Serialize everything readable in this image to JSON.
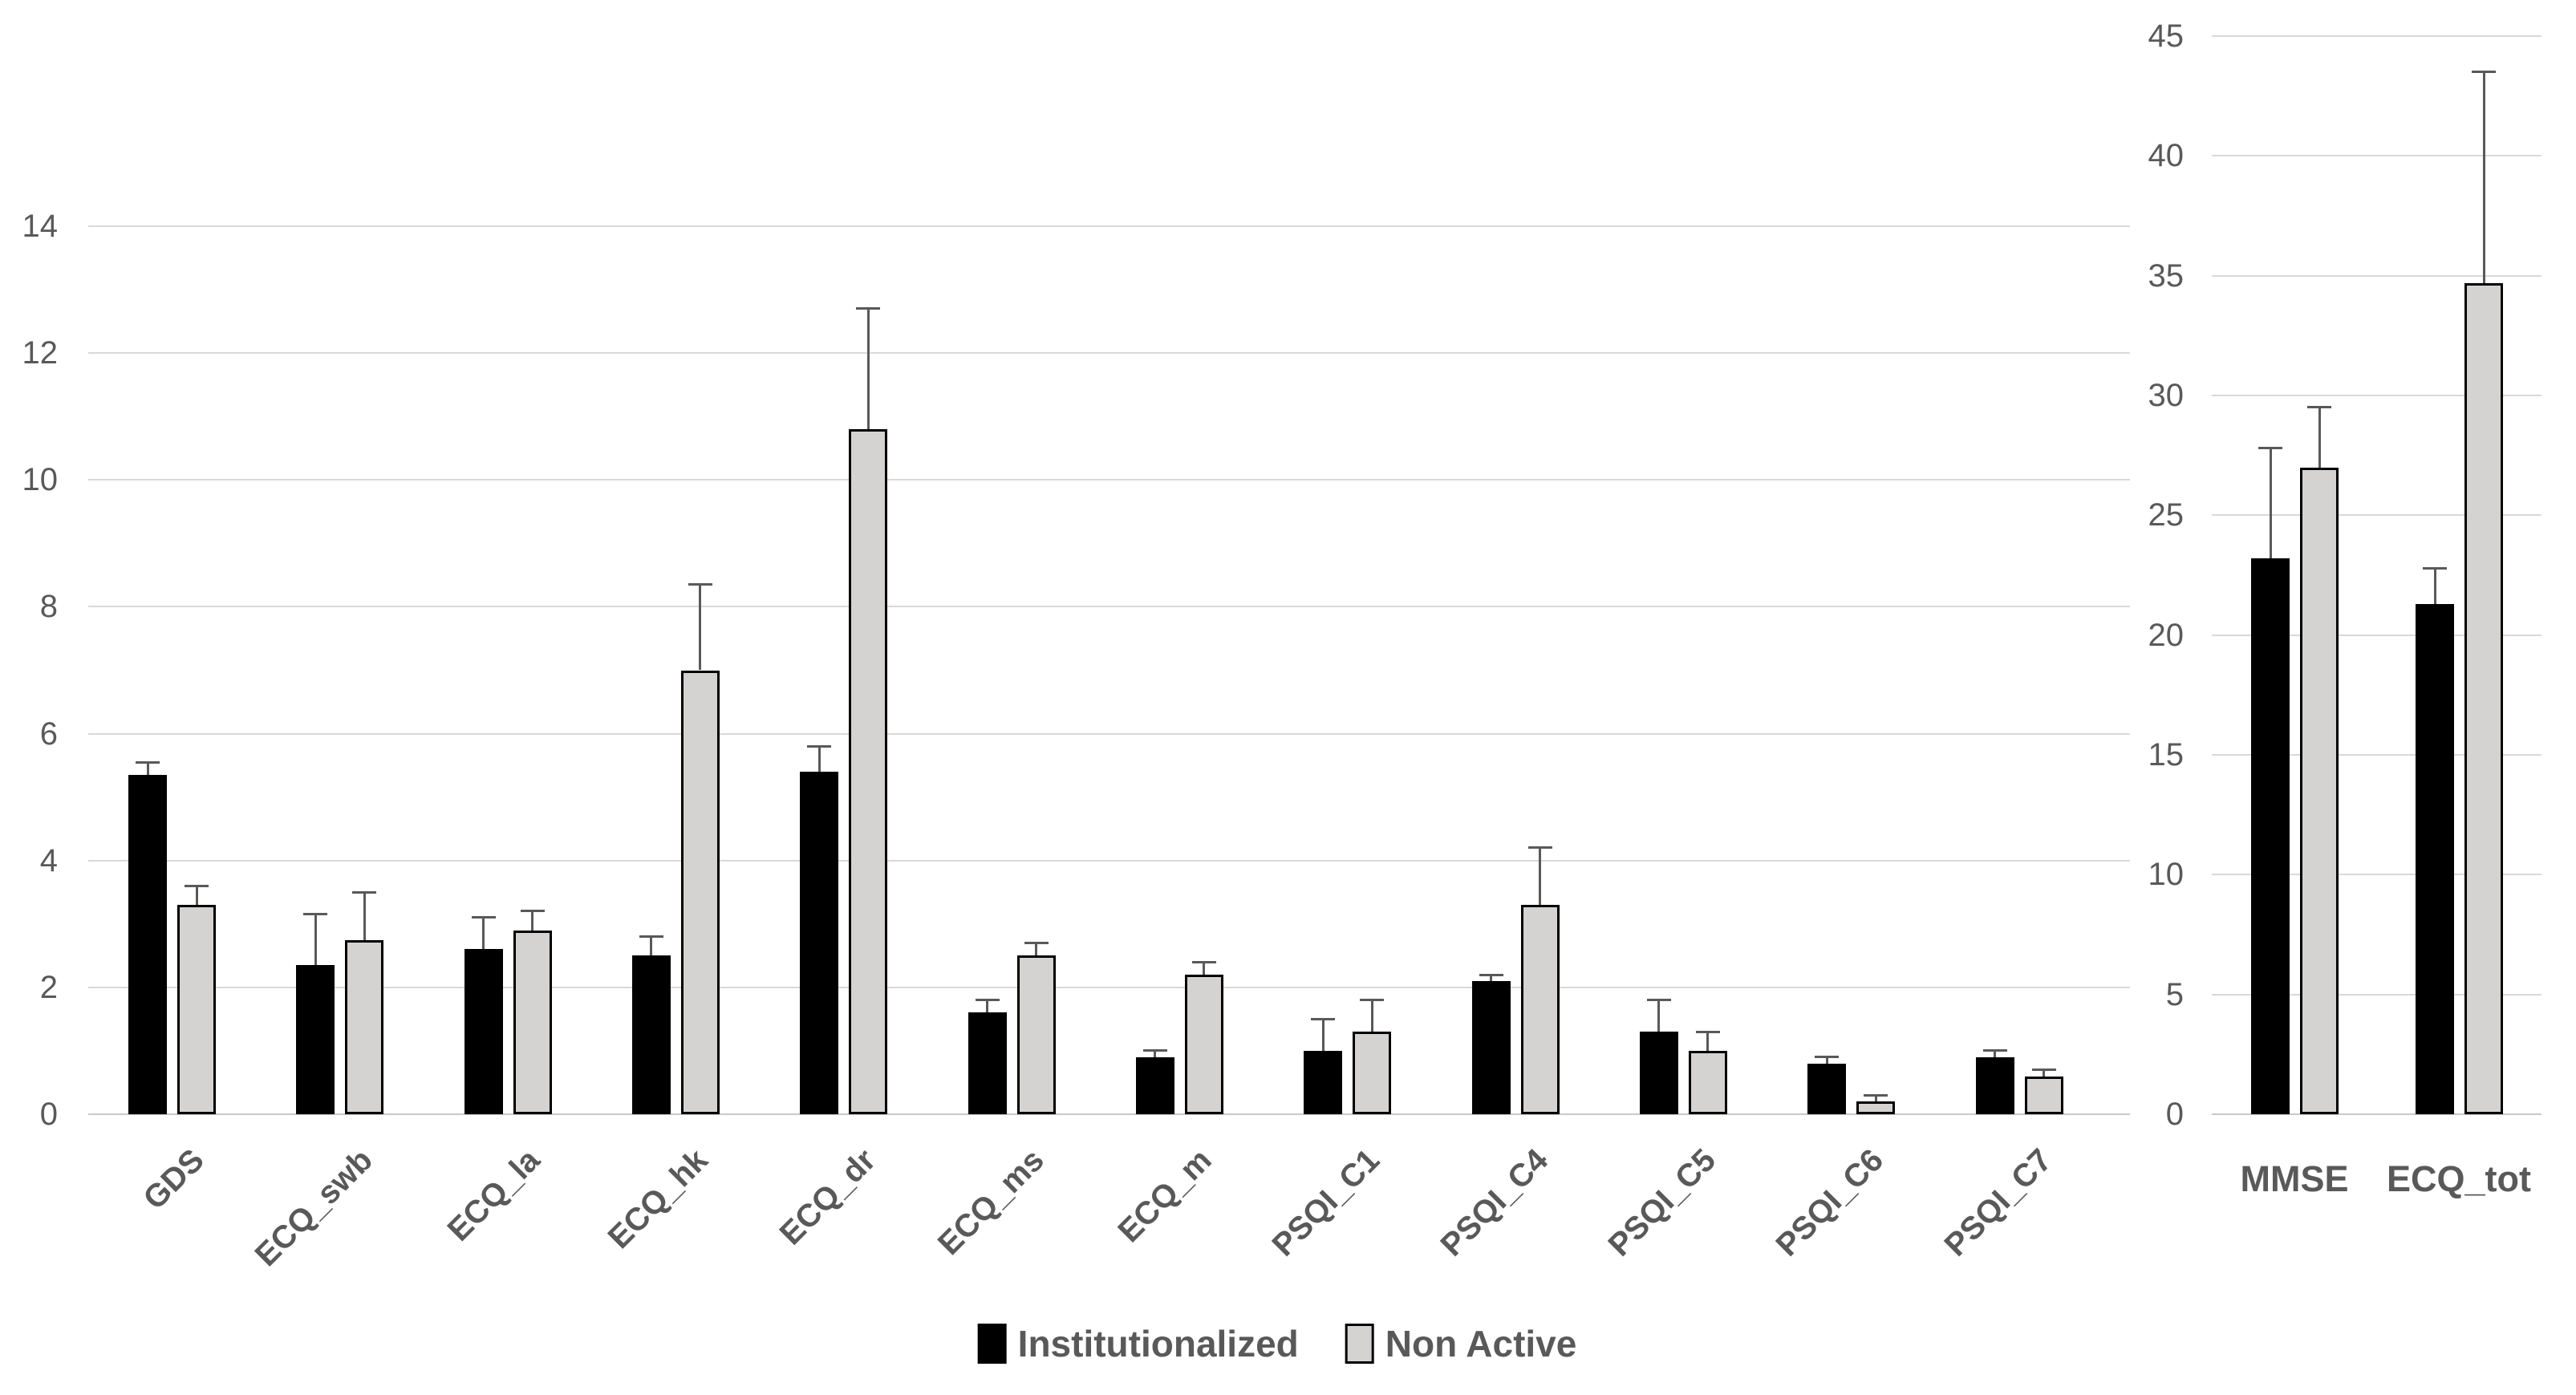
{
  "legend": {
    "items": [
      {
        "label": "Institutionalized",
        "color": "#000000"
      },
      {
        "label": "Non Active",
        "color": "#d5d2d2"
      }
    ]
  },
  "colors": {
    "background": "#ffffff",
    "bar_black": "#000000",
    "bar_gray": "#d5d2d2",
    "bar_border": "#000000",
    "error_bar": "#595959",
    "gridline": "#d9d9d9",
    "axis_text": "#595959"
  },
  "chart_data": [
    {
      "type": "bar",
      "title": "",
      "xlabel": "",
      "ylabel": "",
      "grid": true,
      "legend_position": "bottom",
      "ylim": [
        0,
        14
      ],
      "yticks": [
        0,
        2,
        4,
        6,
        8,
        10,
        12,
        14
      ],
      "categories": [
        "GDS",
        "ECQ_swb",
        "ECQ_la",
        "ECQ_hk",
        "ECQ_dr",
        "ECQ_ms",
        "ECQ_m",
        "PSQI_C1",
        "PSQI_C4",
        "PSQI_C5",
        "PSQI_C6",
        "PSQI_C7"
      ],
      "series": [
        {
          "name": "Institutionalized",
          "color": "#000000",
          "values": [
            5.35,
            2.35,
            2.6,
            2.5,
            5.4,
            1.6,
            0.9,
            1.0,
            2.1,
            1.3,
            0.8,
            0.9
          ],
          "errors_plus": [
            0.2,
            0.8,
            0.5,
            0.3,
            0.4,
            0.2,
            0.1,
            0.5,
            0.1,
            0.5,
            0.1,
            0.1
          ]
        },
        {
          "name": "Non Active",
          "color": "#d5d2d2",
          "values": [
            3.3,
            2.75,
            2.9,
            7.0,
            10.8,
            2.5,
            2.2,
            1.3,
            3.3,
            1.0,
            0.2,
            0.6
          ],
          "errors_plus": [
            0.3,
            0.75,
            0.3,
            1.35,
            1.9,
            0.2,
            0.2,
            0.5,
            0.9,
            0.3,
            0.1,
            0.1
          ]
        }
      ]
    },
    {
      "type": "bar",
      "title": "",
      "xlabel": "",
      "ylabel": "",
      "grid": true,
      "legend_position": "none",
      "ylim": [
        0,
        45
      ],
      "yticks": [
        0,
        5,
        10,
        15,
        20,
        25,
        30,
        35,
        40,
        45
      ],
      "categories": [
        "MMSE",
        "ECQ_tot"
      ],
      "series": [
        {
          "name": "Institutionalized",
          "color": "#000000",
          "values": [
            23.2,
            21.3
          ],
          "errors_plus": [
            4.6,
            1.5
          ]
        },
        {
          "name": "Non Active",
          "color": "#d5d2d2",
          "values": [
            27.0,
            34.7
          ],
          "errors_plus": [
            2.5,
            8.8
          ]
        }
      ]
    }
  ]
}
